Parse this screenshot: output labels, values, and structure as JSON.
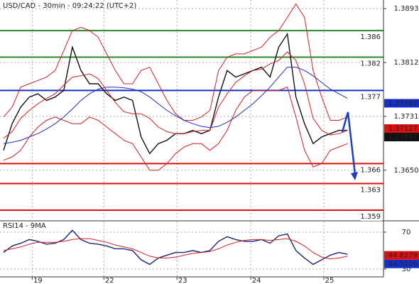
{
  "chart_data": [
    {
      "type": "line",
      "title": "USD/CAD - 30min - 09:24:22 (UTC+2)",
      "x": [
        0,
        1,
        2,
        3,
        4,
        5,
        6,
        7,
        8,
        9,
        10,
        11,
        12,
        13,
        14,
        15,
        16,
        17,
        18,
        19,
        20,
        21,
        22,
        23,
        24,
        25,
        26,
        27,
        28,
        29,
        30,
        31,
        32,
        33,
        34,
        35,
        36,
        37,
        38,
        39,
        40
      ],
      "xlim": [
        0,
        44.6
      ],
      "ylim": [
        1.3575,
        1.3906
      ],
      "yticks": [
        {
          "value": 1.365,
          "label": "1.3650"
        },
        {
          "value": 1.3731,
          "label": "1.3731"
        },
        {
          "value": 1.3812,
          "label": "1.3812"
        },
        {
          "value": 1.3893,
          "label": "1.3893"
        }
      ],
      "grid": true,
      "series": [
        {
          "color": "#111111",
          "values": [
            1.368,
            1.372,
            1.3745,
            1.376,
            1.3765,
            1.3755,
            1.376,
            1.377,
            1.3835,
            1.38,
            1.378,
            1.378,
            1.3765,
            1.3755,
            1.376,
            1.3755,
            1.37,
            1.3675,
            1.369,
            1.3695,
            1.3705,
            1.3705,
            1.371,
            1.3705,
            1.371,
            1.376,
            1.38,
            1.379,
            1.3795,
            1.38,
            1.3805,
            1.379,
            1.3835,
            1.3855,
            1.376,
            1.372,
            1.369,
            1.37,
            1.3705,
            1.371,
            1.371
          ]
        },
        {
          "color": "#d42020",
          "values": [
            1.373,
            1.3745,
            1.3775,
            1.378,
            1.3785,
            1.379,
            1.38,
            1.383,
            1.386,
            1.3865,
            1.386,
            1.385,
            1.3825,
            1.38,
            1.378,
            1.378,
            1.38,
            1.3805,
            1.378,
            1.3755,
            1.3735,
            1.3725,
            1.3725,
            1.373,
            1.374,
            1.38,
            1.382,
            1.3825,
            1.3825,
            1.383,
            1.3835,
            1.385,
            1.386,
            1.388,
            1.39,
            1.388,
            1.38,
            1.376,
            1.3725,
            1.3725,
            1.373
          ]
        },
        {
          "color": "#d42020",
          "values": [
            1.3665,
            1.367,
            1.368,
            1.37,
            1.3715,
            1.3725,
            1.373,
            1.3725,
            1.372,
            1.372,
            1.373,
            1.3725,
            1.3715,
            1.3705,
            1.3695,
            1.369,
            1.367,
            1.365,
            1.365,
            1.366,
            1.3675,
            1.3685,
            1.369,
            1.369,
            1.368,
            1.369,
            1.371,
            1.374,
            1.376,
            1.377,
            1.377,
            1.377,
            1.377,
            1.3775,
            1.373,
            1.368,
            1.3655,
            1.366,
            1.368,
            1.3685,
            1.369
          ]
        },
        {
          "color": "#d42020",
          "values": [
            1.3698,
            1.3708,
            1.3728,
            1.374,
            1.375,
            1.3758,
            1.3765,
            1.3778,
            1.379,
            1.3792,
            1.3795,
            1.3788,
            1.377,
            1.3752,
            1.3738,
            1.3735,
            1.3735,
            1.3728,
            1.3715,
            1.3708,
            1.3705,
            1.3705,
            1.3708,
            1.371,
            1.371,
            1.3745,
            1.3765,
            1.3782,
            1.3792,
            1.38,
            1.3802,
            1.381,
            1.3815,
            1.3828,
            1.3815,
            1.378,
            1.3728,
            1.371,
            1.3703,
            1.3705,
            1.371
          ]
        },
        {
          "color": "#1f2fc0",
          "values": [
            1.369,
            1.3692,
            1.3695,
            1.37,
            1.3705,
            1.3712,
            1.372,
            1.373,
            1.3742,
            1.3755,
            1.3765,
            1.3772,
            1.3775,
            1.3775,
            1.3774,
            1.3772,
            1.3768,
            1.376,
            1.375,
            1.374,
            1.3732,
            1.3725,
            1.372,
            1.3716,
            1.3714,
            1.3716,
            1.3722,
            1.373,
            1.374,
            1.375,
            1.3762,
            1.3775,
            1.379,
            1.3805,
            1.3805,
            1.38,
            1.3792,
            1.3782,
            1.3772,
            1.3765,
            1.3758
          ]
        }
      ],
      "levels": [
        {
          "value": 1.386,
          "color": "#2a8a2a"
        },
        {
          "value": 1.382,
          "color": "#2a8a2a"
        },
        {
          "value": 1.377,
          "color": "#1530c8"
        },
        {
          "value": 1.366,
          "color": "#e01010"
        },
        {
          "value": 1.363,
          "color": "#e01010"
        },
        {
          "value": 1.359,
          "color": "#e01010"
        }
      ],
      "price_labels": [
        {
          "value": 1.37507,
          "color": "#1530c8"
        },
        {
          "value": 1.37127,
          "color": "#e01010"
        },
        {
          "value": 1.37097,
          "color": "#111111"
        }
      ]
    },
    {
      "type": "line",
      "title": "RSI14 - 9MA",
      "x": [
        0,
        1,
        2,
        3,
        4,
        5,
        6,
        7,
        8,
        9,
        10,
        11,
        12,
        13,
        14,
        15,
        16,
        17,
        18,
        19,
        20,
        21,
        22,
        23,
        24,
        25,
        26,
        27,
        28,
        29,
        30,
        31,
        32,
        33,
        34,
        35,
        36,
        37,
        38,
        39,
        40
      ],
      "xlim": [
        0,
        44.6
      ],
      "ylim": [
        21.5,
        81.5
      ],
      "xticks": [
        {
          "value": 3.33,
          "label": "19"
        },
        {
          "value": 11.67,
          "label": "22"
        },
        {
          "value": 20.17,
          "label": "23"
        },
        {
          "value": 28.75,
          "label": "24"
        },
        {
          "value": 37.25,
          "label": "25"
        }
      ],
      "yticks": [
        30,
        70
      ],
      "grid": true,
      "series": [
        {
          "color": "#1a237e",
          "values": [
            48,
            55,
            58,
            62,
            60,
            57,
            58,
            62,
            72,
            62,
            58,
            57,
            55,
            52,
            52,
            50,
            40,
            35,
            42,
            45,
            48,
            48,
            50,
            48,
            50,
            60,
            65,
            62,
            60,
            60,
            62,
            58,
            66,
            68,
            50,
            42,
            35,
            40,
            45,
            48,
            46
          ]
        },
        {
          "color": "#d42020",
          "values": [
            50,
            52,
            54,
            57,
            59,
            59,
            59,
            60,
            62,
            63,
            63,
            61,
            59,
            56,
            54,
            52,
            48,
            44,
            42,
            42,
            43,
            45,
            47,
            48,
            49,
            52,
            56,
            59,
            61,
            62,
            62,
            61,
            62,
            63,
            60,
            55,
            48,
            43,
            41,
            42,
            44
          ]
        }
      ],
      "price_labels": [
        {
          "value": 44.8279,
          "color": "#e01010"
        },
        {
          "value": 44.5126,
          "color": "#1530c8"
        }
      ]
    }
  ]
}
